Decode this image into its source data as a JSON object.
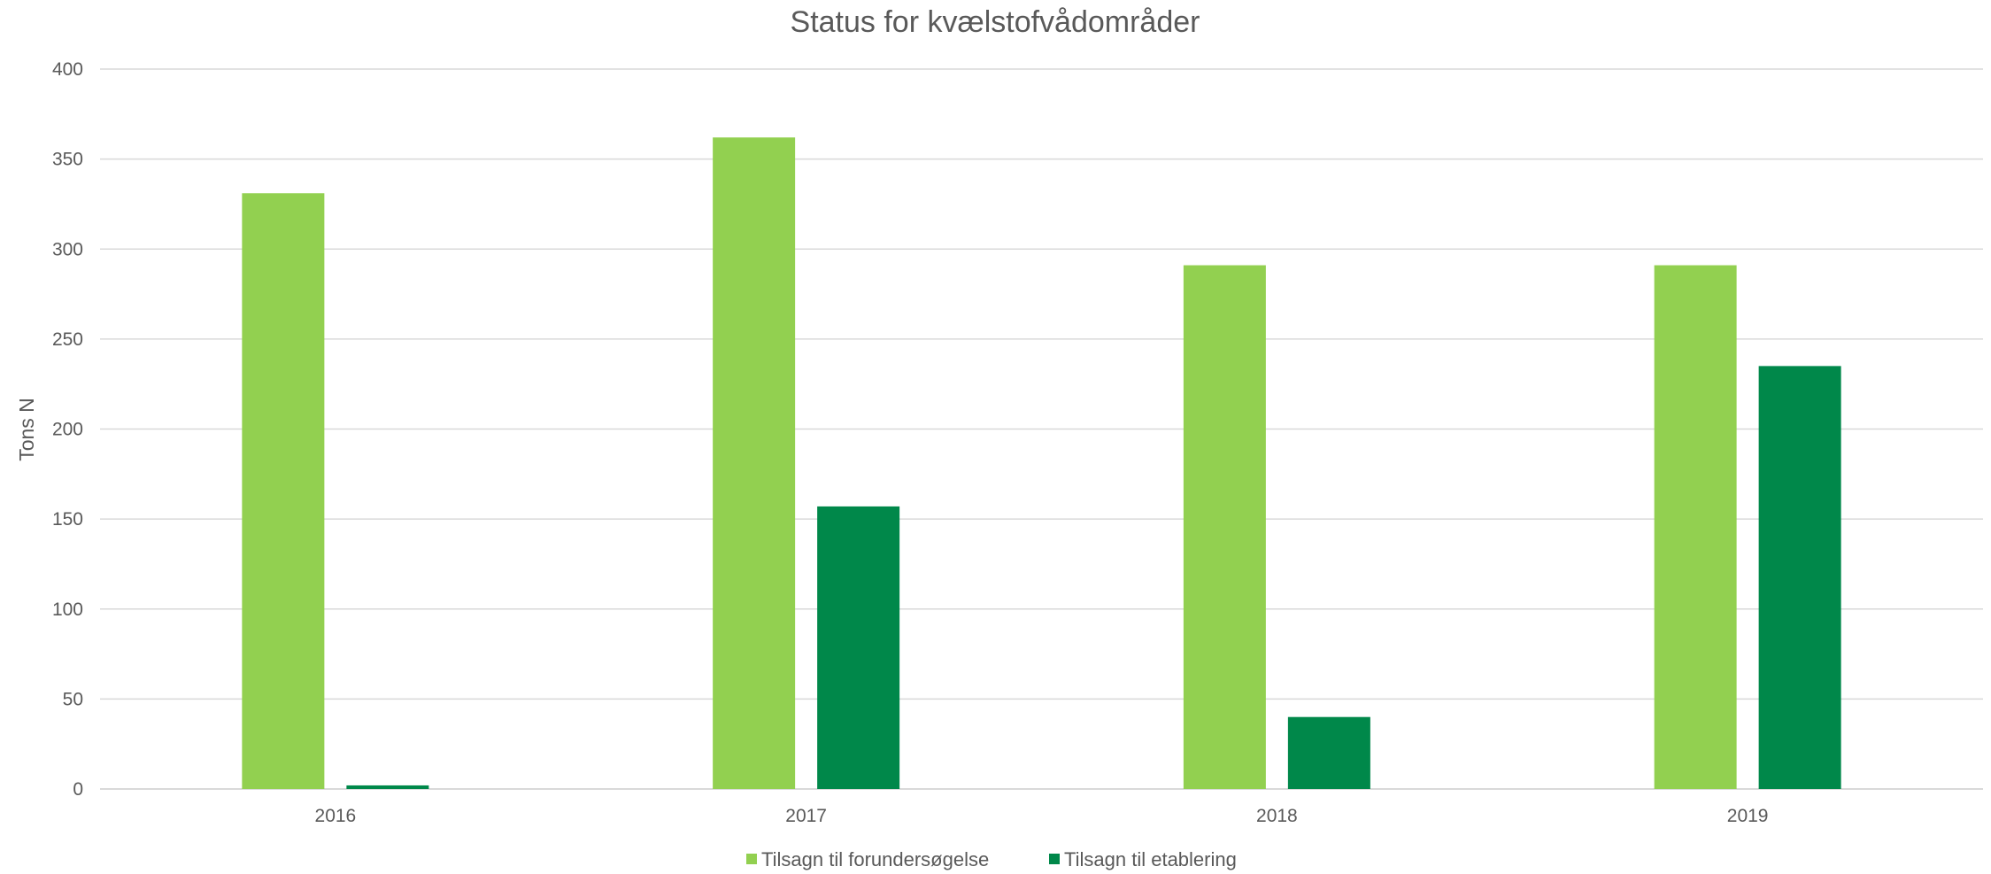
{
  "chart_data": {
    "type": "bar",
    "title": "Status for kvælstofvådområder",
    "ylabel": "Tons N",
    "xlabel": "",
    "categories": [
      "2016",
      "2017",
      "2018",
      "2019"
    ],
    "ylim": [
      0,
      400
    ],
    "yticks": [
      0,
      50,
      100,
      150,
      200,
      250,
      300,
      350,
      400
    ],
    "grid": true,
    "legend_position": "bottom",
    "series": [
      {
        "name": "Tilsagn til forundersøgelse",
        "color": "#92d050",
        "values": [
          331,
          362,
          291,
          291
        ]
      },
      {
        "name": "Tilsagn til etablering",
        "color": "#00884a",
        "values": [
          2,
          157,
          40,
          235
        ]
      }
    ]
  }
}
